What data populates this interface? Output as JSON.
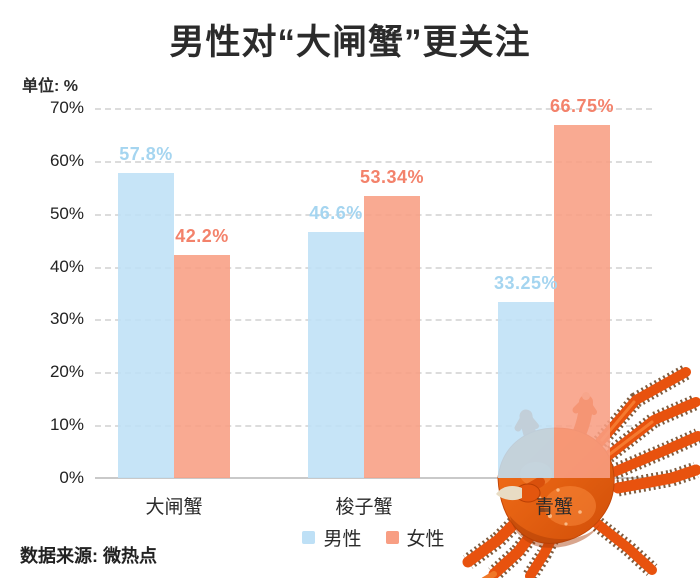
{
  "title": "男性对“大闸蟹”更关注",
  "unit_label": "单位: %",
  "source_text": "数据来源: 微热点",
  "decoration": {
    "crab_image": "orange-hairy-crab-photo"
  },
  "chart_data": {
    "type": "bar",
    "title": "男性对“大闸蟹”更关注",
    "unit": "%",
    "categories": [
      "大闸蟹",
      "梭子蟹",
      "青蟹"
    ],
    "series": [
      {
        "name": "男性",
        "values": [
          57.8,
          46.6,
          33.25
        ],
        "labels": [
          "57.8%",
          "46.6%",
          "33.25%"
        ],
        "bar_color": "#BEE0F6",
        "label_color": "#A5D5F0"
      },
      {
        "name": "女性",
        "values": [
          42.2,
          53.34,
          66.75
        ],
        "labels": [
          "42.2%",
          "53.34%",
          "66.75%"
        ],
        "bar_color": "#F89E83",
        "label_color": "#F3826B"
      }
    ],
    "y_ticks": [
      "70%",
      "60%",
      "50%",
      "40%",
      "30%",
      "20%",
      "10%",
      "0%"
    ],
    "ylim": [
      0,
      70
    ],
    "grid": "horizontal-dashed",
    "grid_color": "#DCDCDC",
    "axis_color": "#C9C9C9",
    "legend_position": "bottom-center",
    "source": "数据来源: 微热点"
  }
}
